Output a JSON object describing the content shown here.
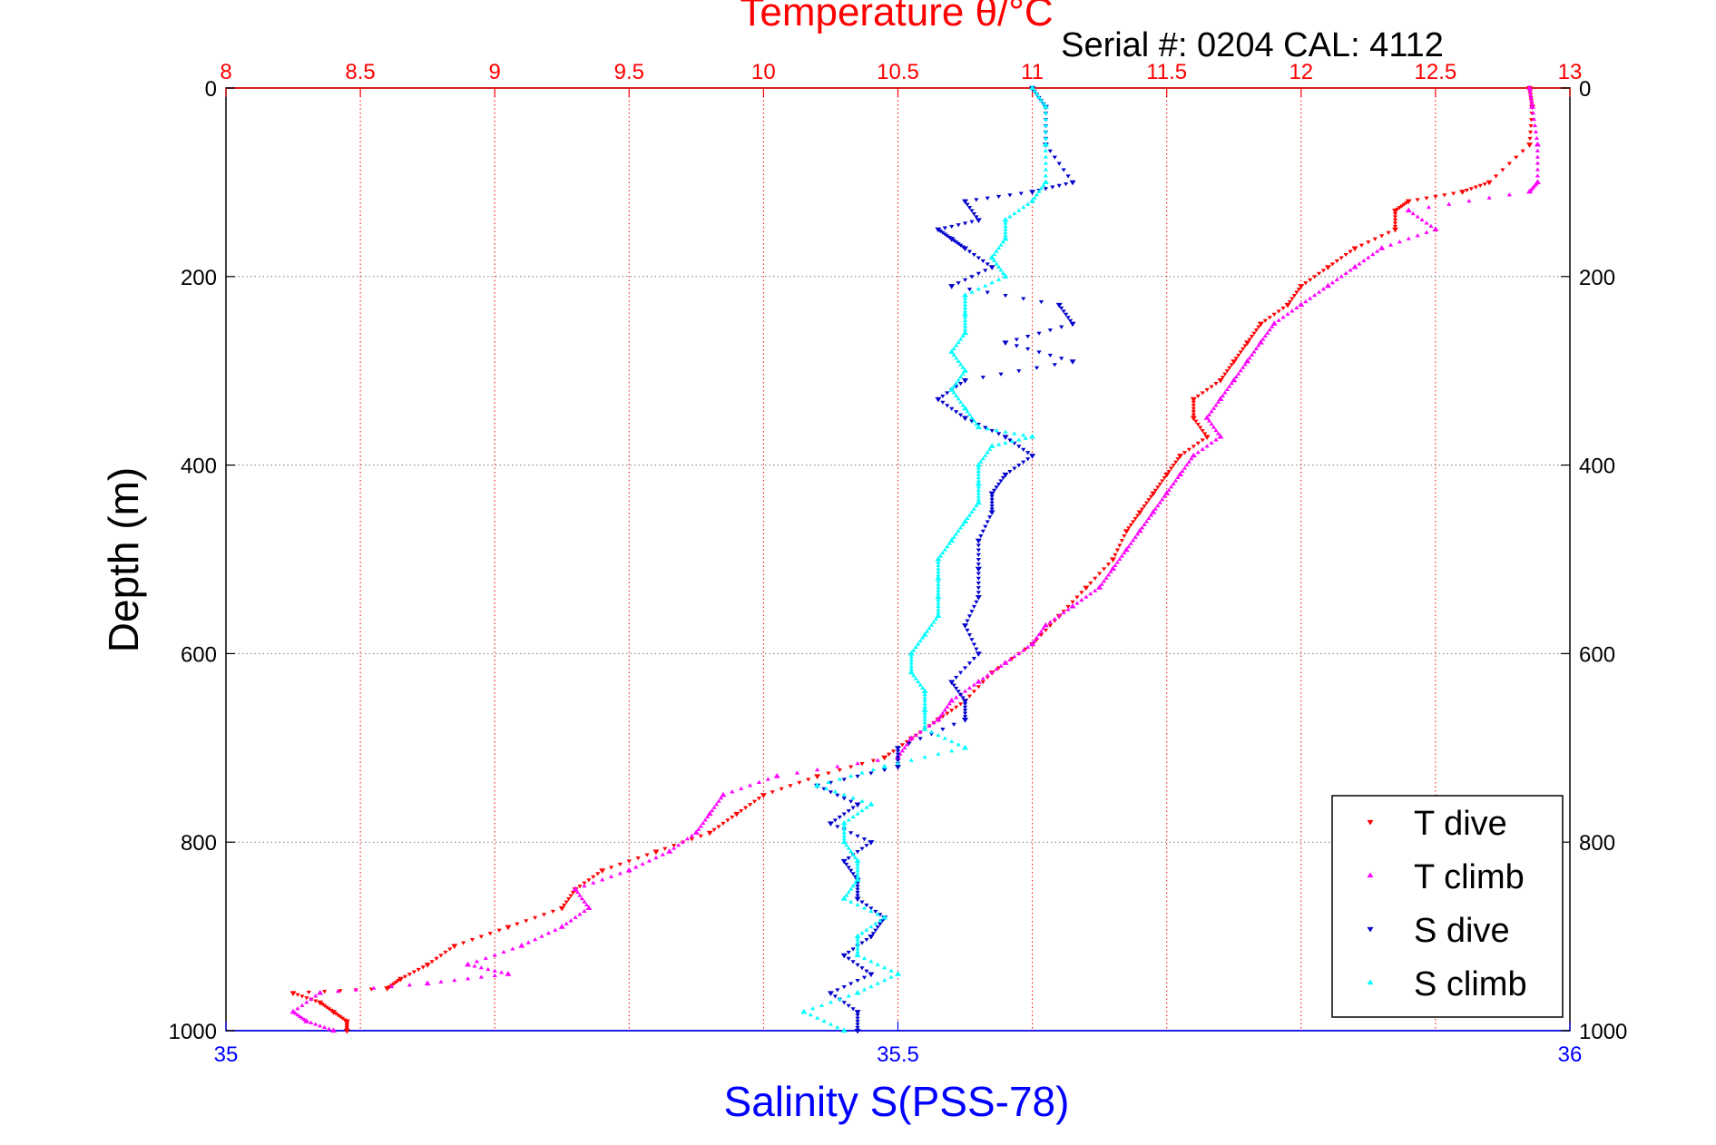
{
  "chart_data": {
    "type": "scatter",
    "title": "Temperature θ/°C",
    "subtitle": "Serial #: 0204  CAL: 4112",
    "ylabel": "Depth (m)",
    "xlabel": "Salinity S(PSS-78)",
    "colors": {
      "temperature_axis": "#ff0000",
      "salinity_axis": "#0000ff",
      "t_dive": "#ff0000",
      "t_climb": "#ff00ff",
      "s_dive": "#0000cc",
      "s_climb": "#00ffff",
      "grid": "#777777"
    },
    "temperature_axis": {
      "range": [
        8,
        13
      ],
      "ticks": [
        "8",
        "8.5",
        "9",
        "9.5",
        "10",
        "10.5",
        "11",
        "11.5",
        "12",
        "12.5",
        "13"
      ]
    },
    "salinity_axis": {
      "range": [
        35,
        36
      ],
      "ticks": [
        "35",
        "35.5",
        "36"
      ]
    },
    "depth_axis": {
      "range": [
        0,
        1000
      ],
      "reversed": true,
      "ticks": [
        "0",
        "200",
        "400",
        "600",
        "800",
        "1000"
      ]
    },
    "grid": true,
    "legend": {
      "placement": "bottom-right",
      "entries": [
        "T dive",
        "T climb",
        "S dive",
        "S climb"
      ]
    },
    "series": [
      {
        "name": "T dive",
        "axis": "temperature",
        "marker": "triangle-down",
        "depth": [
          0,
          20,
          60,
          100,
          110,
          120,
          130,
          150,
          170,
          190,
          210,
          230,
          250,
          270,
          290,
          310,
          330,
          350,
          370,
          390,
          410,
          430,
          450,
          470,
          500,
          530,
          560,
          590,
          620,
          650,
          670,
          690,
          710,
          730,
          750,
          770,
          790,
          810,
          830,
          850,
          870,
          890,
          910,
          930,
          945,
          955,
          960,
          970,
          980,
          990,
          1000
        ],
        "values": [
          12.85,
          12.86,
          12.85,
          12.7,
          12.6,
          12.4,
          12.35,
          12.35,
          12.2,
          12.1,
          12.0,
          11.95,
          11.85,
          11.8,
          11.75,
          11.7,
          11.6,
          11.6,
          11.65,
          11.55,
          11.5,
          11.45,
          11.4,
          11.35,
          11.3,
          11.2,
          11.1,
          11.0,
          10.85,
          10.75,
          10.65,
          10.55,
          10.45,
          10.2,
          10.0,
          9.9,
          9.8,
          9.6,
          9.4,
          9.3,
          9.25,
          9.05,
          8.85,
          8.75,
          8.65,
          8.6,
          8.25,
          8.35,
          8.4,
          8.45,
          8.45
        ]
      },
      {
        "name": "T climb",
        "axis": "temperature",
        "marker": "triangle-up",
        "depth": [
          1000,
          990,
          980,
          960,
          950,
          940,
          930,
          910,
          890,
          870,
          850,
          830,
          810,
          790,
          770,
          750,
          730,
          710,
          690,
          670,
          650,
          630,
          610,
          590,
          570,
          550,
          530,
          510,
          490,
          470,
          450,
          430,
          410,
          390,
          370,
          350,
          330,
          310,
          290,
          270,
          250,
          230,
          210,
          190,
          170,
          150,
          130,
          110,
          100,
          60,
          20,
          0
        ],
        "values": [
          8.4,
          8.3,
          8.25,
          8.35,
          8.75,
          9.05,
          8.9,
          9.1,
          9.25,
          9.35,
          9.3,
          9.5,
          9.65,
          9.75,
          9.8,
          9.85,
          10.05,
          10.5,
          10.55,
          10.65,
          10.7,
          10.8,
          10.9,
          11.0,
          11.05,
          11.15,
          11.25,
          11.3,
          11.35,
          11.4,
          11.45,
          11.5,
          11.55,
          11.6,
          11.7,
          11.65,
          11.7,
          11.75,
          11.8,
          11.85,
          11.9,
          12.0,
          12.1,
          12.2,
          12.3,
          12.5,
          12.4,
          12.85,
          12.88,
          12.88,
          12.86,
          12.85
        ]
      },
      {
        "name": "S dive",
        "axis": "salinity",
        "marker": "triangle-down",
        "depth": [
          0,
          20,
          60,
          100,
          110,
          120,
          140,
          150,
          160,
          170,
          190,
          210,
          230,
          250,
          270,
          290,
          310,
          330,
          350,
          370,
          390,
          410,
          430,
          450,
          480,
          510,
          540,
          570,
          600,
          630,
          650,
          670,
          700,
          720,
          740,
          760,
          780,
          800,
          820,
          840,
          860,
          880,
          900,
          920,
          940,
          960,
          980,
          1000
        ],
        "values": [
          35.6,
          35.61,
          35.61,
          35.63,
          35.6,
          35.55,
          35.56,
          35.53,
          35.54,
          35.55,
          35.57,
          35.54,
          35.62,
          35.63,
          35.58,
          35.63,
          35.55,
          35.53,
          35.55,
          35.58,
          35.6,
          35.58,
          35.57,
          35.57,
          35.56,
          35.56,
          35.56,
          35.55,
          35.56,
          35.54,
          35.55,
          35.55,
          35.5,
          35.5,
          35.44,
          35.47,
          35.45,
          35.48,
          35.46,
          35.47,
          35.47,
          35.49,
          35.48,
          35.46,
          35.48,
          35.45,
          35.47,
          35.47
        ]
      },
      {
        "name": "S climb",
        "axis": "salinity",
        "marker": "triangle-up",
        "depth": [
          1000,
          980,
          960,
          940,
          920,
          900,
          880,
          860,
          840,
          820,
          800,
          780,
          760,
          740,
          720,
          700,
          680,
          660,
          640,
          620,
          600,
          580,
          560,
          540,
          520,
          500,
          480,
          460,
          440,
          420,
          400,
          380,
          370,
          360,
          340,
          320,
          300,
          280,
          260,
          240,
          220,
          200,
          180,
          160,
          140,
          120,
          100,
          60,
          20,
          0
        ],
        "values": [
          35.46,
          35.43,
          35.47,
          35.5,
          35.47,
          35.47,
          35.49,
          35.46,
          35.47,
          35.47,
          35.46,
          35.46,
          35.48,
          35.44,
          35.49,
          35.55,
          35.52,
          35.52,
          35.52,
          35.51,
          35.51,
          35.52,
          35.53,
          35.53,
          35.53,
          35.53,
          35.54,
          35.55,
          35.56,
          35.56,
          35.56,
          35.57,
          35.6,
          35.56,
          35.55,
          35.54,
          35.55,
          35.54,
          35.55,
          35.55,
          35.55,
          35.58,
          35.57,
          35.58,
          35.58,
          35.6,
          35.61,
          35.61,
          35.61,
          35.6
        ]
      }
    ]
  }
}
